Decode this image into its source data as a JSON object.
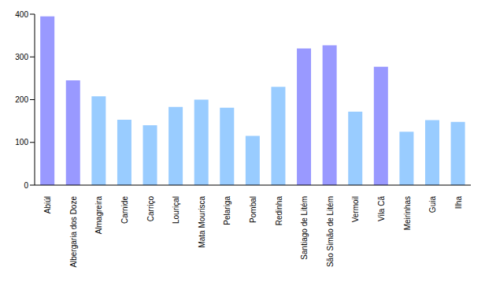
{
  "chart_data": {
    "type": "bar",
    "categories": [
      "Abiúl",
      "Albergaria dos Doze",
      "Almagreira",
      "Carnide",
      "Carriço",
      "Louriçal",
      "Mata Mourisca",
      "Pelariga",
      "Pombal",
      "Redinha",
      "Santiago de Litém",
      "São Simão de Litém",
      "Vermoil",
      "Vila Cã",
      "Meirinhas",
      "Guia",
      "Ilha"
    ],
    "values": [
      395,
      245,
      208,
      153,
      140,
      183,
      200,
      181,
      115,
      230,
      320,
      327,
      172,
      277,
      125,
      152,
      148
    ],
    "colors": [
      "#9999ff",
      "#9999ff",
      "#99ccff",
      "#99ccff",
      "#99ccff",
      "#99ccff",
      "#99ccff",
      "#99ccff",
      "#99ccff",
      "#99ccff",
      "#9999ff",
      "#9999ff",
      "#99ccff",
      "#9999ff",
      "#99ccff",
      "#99ccff",
      "#99ccff"
    ],
    "ylim": [
      0,
      400
    ],
    "yticks": [
      0,
      100,
      200,
      300,
      400
    ],
    "grid": false
  }
}
